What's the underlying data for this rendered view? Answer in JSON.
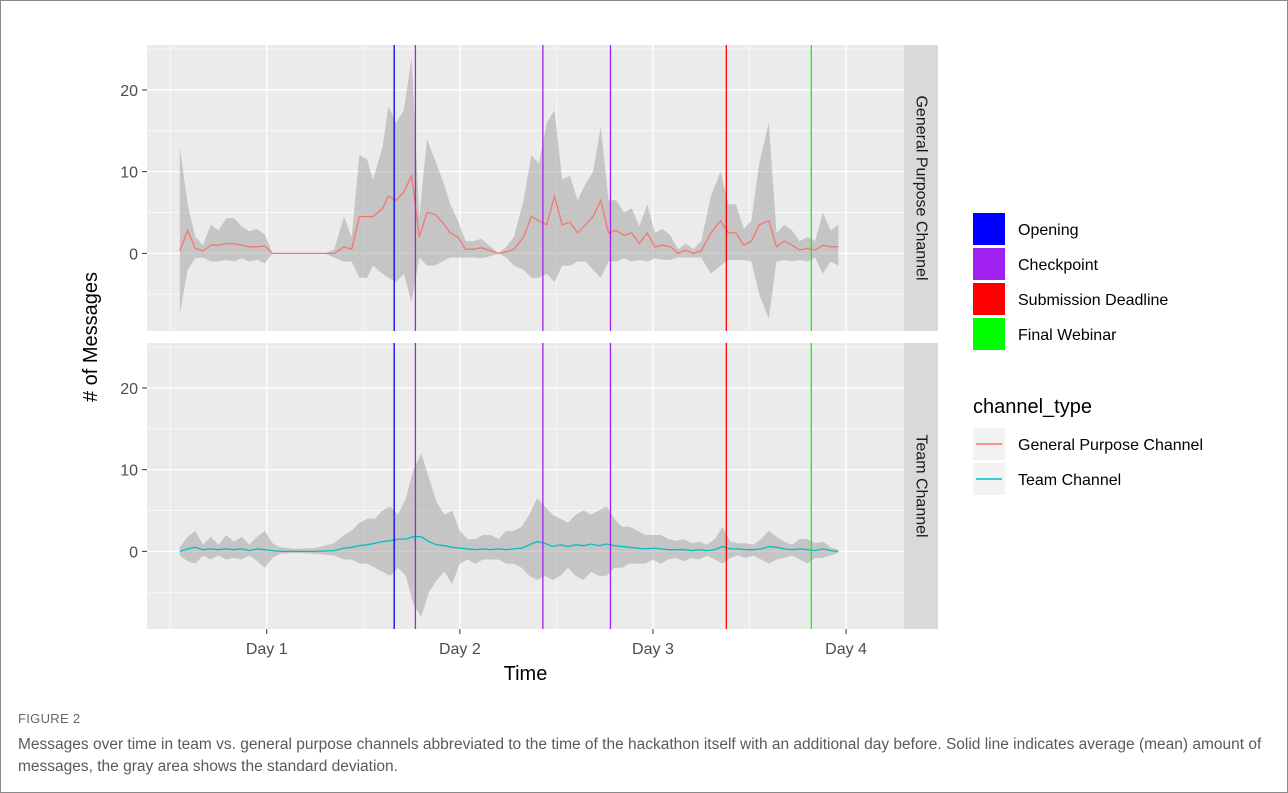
{
  "caption": {
    "figure_label": "FIGURE 2",
    "text": "Messages over time in team vs. general purpose channels abbreviated to the time of the hackathon itself with an additional day before. Solid line indicates average (mean) amount of messages, the gray area shows the standard deviation."
  },
  "colors": {
    "panel_bg": "#ebebeb",
    "grid_major": "#ffffff",
    "strip_bg": "#d9d9d9",
    "ribbon": "#a6a6a6",
    "general_line": "#f8766d",
    "team_line": "#00bfc4",
    "opening": "#0000ff",
    "checkpoint": "#a020f0",
    "submission": "#ff0000",
    "final_webinar": "#00ff00"
  },
  "chart_data": {
    "type": "line",
    "title": "",
    "xlabel": "Time",
    "ylabel": "# of Messages",
    "x_ticks": [
      {
        "label": "Day 1",
        "value": 1
      },
      {
        "label": "Day 2",
        "value": 2
      },
      {
        "label": "Day 3",
        "value": 3
      },
      {
        "label": "Day 4",
        "value": 4
      }
    ],
    "xlim": [
      0.38,
      4.3
    ],
    "y_ticks": [
      0,
      10,
      20
    ],
    "ylim": [
      -9.5,
      25.5
    ],
    "grid": true,
    "facets": [
      "General Purpose Channel",
      "Team Channel"
    ],
    "event_lines": [
      {
        "name": "Opening",
        "color": "#0000ff",
        "x": 1.66
      },
      {
        "name": "Checkpoint",
        "color": "#a020f0",
        "x": 1.77
      },
      {
        "name": "Checkpoint",
        "color": "#a020f0",
        "x": 2.43
      },
      {
        "name": "Checkpoint",
        "color": "#a020f0",
        "x": 2.78
      },
      {
        "name": "Submission Deadline",
        "color": "#ff0000",
        "x": 3.38
      },
      {
        "name": "Final Webinar",
        "color": "#00ff00",
        "x": 3.82
      }
    ],
    "event_legend": [
      {
        "label": "Opening",
        "color": "#0000ff"
      },
      {
        "label": "Checkpoint",
        "color": "#a020f0"
      },
      {
        "label": "Submission Deadline",
        "color": "#ff0000"
      },
      {
        "label": "Final Webinar",
        "color": "#00ff00"
      }
    ],
    "legend_title": "channel_type",
    "series": [
      {
        "name": "General Purpose Channel",
        "color": "#f8766d",
        "facet": "General Purpose Channel",
        "points": [
          [
            0.55,
            0.3,
            -7.5,
            13.0
          ],
          [
            0.59,
            2.8,
            -2.0,
            6.0
          ],
          [
            0.63,
            0.6,
            -0.6,
            2.0
          ],
          [
            0.67,
            0.3,
            -0.5,
            1.0
          ],
          [
            0.71,
            1.0,
            -1.0,
            3.5
          ],
          [
            0.75,
            1.0,
            -1.0,
            2.8
          ],
          [
            0.79,
            1.2,
            -0.8,
            4.3
          ],
          [
            0.83,
            1.2,
            -1.0,
            4.3
          ],
          [
            0.87,
            1.0,
            -0.6,
            3.3
          ],
          [
            0.91,
            0.8,
            -1.0,
            2.7
          ],
          [
            0.95,
            0.8,
            -0.8,
            3.0
          ],
          [
            0.99,
            0.9,
            -1.2,
            2.3
          ],
          [
            1.03,
            0.0,
            0.0,
            0.0
          ],
          [
            1.1,
            0.0,
            0.0,
            0.0
          ],
          [
            1.2,
            0.0,
            0.0,
            0.0
          ],
          [
            1.3,
            0.0,
            0.0,
            0.0
          ],
          [
            1.35,
            0.0,
            -0.5,
            0.5
          ],
          [
            1.4,
            0.8,
            -1.0,
            4.5
          ],
          [
            1.44,
            0.5,
            -1.0,
            2.0
          ],
          [
            1.48,
            4.5,
            -3.0,
            12.0
          ],
          [
            1.52,
            4.5,
            -3.0,
            11.5
          ],
          [
            1.55,
            4.5,
            -1.5,
            9.0
          ],
          [
            1.6,
            5.5,
            -2.5,
            13.0
          ],
          [
            1.63,
            7.0,
            -3.0,
            18.0
          ],
          [
            1.67,
            6.5,
            -3.5,
            16.0
          ],
          [
            1.71,
            7.5,
            -2.5,
            17.5
          ],
          [
            1.75,
            9.5,
            -6.0,
            24.0
          ],
          [
            1.79,
            2.0,
            -0.5,
            4.5
          ],
          [
            1.83,
            5.0,
            -1.5,
            14.0
          ],
          [
            1.87,
            4.8,
            -1.5,
            11.5
          ],
          [
            1.91,
            3.8,
            -1.0,
            9.0
          ],
          [
            1.95,
            2.5,
            -0.5,
            6.0
          ],
          [
            1.99,
            2.0,
            -0.5,
            4.0
          ],
          [
            2.03,
            0.5,
            -0.5,
            1.5
          ],
          [
            2.07,
            0.5,
            -0.5,
            1.5
          ],
          [
            2.11,
            0.7,
            -0.6,
            1.8
          ],
          [
            2.15,
            0.4,
            -0.4,
            1.0
          ],
          [
            2.2,
            0.0,
            0.0,
            0.0
          ],
          [
            2.24,
            0.2,
            -0.5,
            0.8
          ],
          [
            2.28,
            0.5,
            -1.5,
            2.0
          ],
          [
            2.33,
            2.0,
            -2.0,
            6.5
          ],
          [
            2.37,
            4.5,
            -3.0,
            12.0
          ],
          [
            2.41,
            4.0,
            -3.0,
            11.0
          ],
          [
            2.45,
            3.5,
            -2.5,
            16.0
          ],
          [
            2.49,
            7.0,
            -3.5,
            17.5
          ],
          [
            2.53,
            3.5,
            -1.5,
            9.0
          ],
          [
            2.57,
            3.8,
            -1.5,
            9.5
          ],
          [
            2.61,
            2.5,
            -1.0,
            6.5
          ],
          [
            2.65,
            3.5,
            -1.0,
            8.5
          ],
          [
            2.69,
            4.5,
            -2.0,
            10.0
          ],
          [
            2.73,
            6.5,
            -3.0,
            15.5
          ],
          [
            2.77,
            2.5,
            -1.0,
            6.5
          ],
          [
            2.81,
            2.8,
            -1.0,
            6.5
          ],
          [
            2.85,
            2.2,
            -0.6,
            5.0
          ],
          [
            2.89,
            2.5,
            -1.0,
            5.5
          ],
          [
            2.93,
            1.2,
            -0.8,
            3.3
          ],
          [
            2.97,
            2.5,
            -1.0,
            6.0
          ],
          [
            3.01,
            0.8,
            -0.6,
            2.5
          ],
          [
            3.05,
            1.0,
            -0.8,
            3.0
          ],
          [
            3.09,
            0.8,
            -0.8,
            2.2
          ],
          [
            3.13,
            0.0,
            -0.5,
            0.5
          ],
          [
            3.17,
            0.4,
            -0.5,
            1.2
          ],
          [
            3.21,
            0.0,
            -0.5,
            0.5
          ],
          [
            3.25,
            0.3,
            -0.5,
            1.5
          ],
          [
            3.3,
            2.5,
            -2.5,
            7.0
          ],
          [
            3.35,
            4.0,
            -1.5,
            10.0
          ],
          [
            3.39,
            2.5,
            -0.8,
            6.0
          ],
          [
            3.43,
            2.5,
            -0.8,
            6.0
          ],
          [
            3.47,
            1.0,
            -0.8,
            3.0
          ],
          [
            3.51,
            1.5,
            -1.0,
            4.0
          ],
          [
            3.55,
            3.5,
            -5.0,
            11.0
          ],
          [
            3.6,
            4.0,
            -8.0,
            16.0
          ],
          [
            3.64,
            0.8,
            -1.0,
            2.5
          ],
          [
            3.68,
            1.5,
            -0.8,
            3.5
          ],
          [
            3.72,
            1.0,
            -1.0,
            2.8
          ],
          [
            3.76,
            0.4,
            -0.8,
            1.5
          ],
          [
            3.8,
            0.6,
            -1.0,
            2.0
          ],
          [
            3.84,
            0.4,
            -0.5,
            1.5
          ],
          [
            3.88,
            1.0,
            -2.5,
            5.0
          ],
          [
            3.92,
            0.8,
            -1.0,
            2.8
          ],
          [
            3.96,
            0.8,
            -1.5,
            3.5
          ]
        ]
      },
      {
        "name": "Team Channel",
        "color": "#00bfc4",
        "facet": "Team Channel",
        "points": [
          [
            0.55,
            0.0,
            -0.5,
            0.5
          ],
          [
            0.59,
            0.3,
            -1.2,
            1.8
          ],
          [
            0.63,
            0.5,
            -1.5,
            2.5
          ],
          [
            0.67,
            0.2,
            -0.5,
            0.8
          ],
          [
            0.71,
            0.3,
            -1.0,
            1.8
          ],
          [
            0.75,
            0.2,
            -0.5,
            0.8
          ],
          [
            0.79,
            0.3,
            -1.0,
            2.0
          ],
          [
            0.83,
            0.2,
            -0.8,
            1.2
          ],
          [
            0.87,
            0.3,
            -1.0,
            1.8
          ],
          [
            0.91,
            0.1,
            -0.5,
            0.8
          ],
          [
            0.95,
            0.3,
            -1.2,
            1.8
          ],
          [
            0.99,
            0.2,
            -2.0,
            2.5
          ],
          [
            1.03,
            0.1,
            -0.8,
            1.0
          ],
          [
            1.07,
            0.0,
            -0.3,
            0.5
          ],
          [
            1.15,
            0.0,
            -0.2,
            0.3
          ],
          [
            1.25,
            0.0,
            -0.3,
            0.4
          ],
          [
            1.35,
            0.1,
            -0.5,
            1.0
          ],
          [
            1.4,
            0.4,
            -1.0,
            2.0
          ],
          [
            1.44,
            0.5,
            -1.0,
            2.5
          ],
          [
            1.48,
            0.7,
            -1.5,
            3.5
          ],
          [
            1.52,
            0.8,
            -1.5,
            4.0
          ],
          [
            1.56,
            1.0,
            -2.0,
            4.0
          ],
          [
            1.6,
            1.2,
            -2.5,
            5.0
          ],
          [
            1.64,
            1.3,
            -3.0,
            5.5
          ],
          [
            1.68,
            1.5,
            -2.0,
            4.5
          ],
          [
            1.72,
            1.5,
            -3.0,
            6.5
          ],
          [
            1.76,
            1.8,
            -6.5,
            10.0
          ],
          [
            1.8,
            1.8,
            -8.0,
            12.0
          ],
          [
            1.84,
            1.2,
            -5.0,
            9.0
          ],
          [
            1.88,
            0.8,
            -3.5,
            6.0
          ],
          [
            1.92,
            0.7,
            -2.5,
            4.5
          ],
          [
            1.96,
            0.5,
            -4.0,
            5.0
          ],
          [
            2.0,
            0.4,
            -1.5,
            2.5
          ],
          [
            2.04,
            0.3,
            -1.0,
            1.5
          ],
          [
            2.08,
            0.2,
            -1.5,
            1.5
          ],
          [
            2.12,
            0.3,
            -1.0,
            2.0
          ],
          [
            2.16,
            0.2,
            -1.0,
            2.0
          ],
          [
            2.2,
            0.3,
            -1.0,
            1.5
          ],
          [
            2.24,
            0.2,
            -1.5,
            2.5
          ],
          [
            2.28,
            0.3,
            -1.5,
            2.5
          ],
          [
            2.32,
            0.4,
            -2.0,
            3.0
          ],
          [
            2.36,
            0.8,
            -3.0,
            4.5
          ],
          [
            2.4,
            1.2,
            -3.5,
            6.5
          ],
          [
            2.44,
            1.0,
            -3.0,
            5.5
          ],
          [
            2.48,
            0.6,
            -3.5,
            4.5
          ],
          [
            2.52,
            0.8,
            -3.0,
            4.0
          ],
          [
            2.56,
            0.6,
            -2.0,
            3.5
          ],
          [
            2.6,
            0.8,
            -3.0,
            4.5
          ],
          [
            2.64,
            0.7,
            -3.5,
            5.0
          ],
          [
            2.68,
            0.9,
            -2.5,
            4.5
          ],
          [
            2.72,
            0.7,
            -3.0,
            5.0
          ],
          [
            2.76,
            0.9,
            -3.0,
            5.5
          ],
          [
            2.8,
            0.7,
            -2.0,
            4.0
          ],
          [
            2.84,
            0.6,
            -2.0,
            3.0
          ],
          [
            2.88,
            0.5,
            -1.5,
            3.0
          ],
          [
            2.92,
            0.4,
            -1.5,
            2.5
          ],
          [
            2.96,
            0.3,
            -1.5,
            2.0
          ],
          [
            3.0,
            0.4,
            -1.0,
            2.0
          ],
          [
            3.04,
            0.3,
            -1.5,
            2.0
          ],
          [
            3.08,
            0.2,
            -1.0,
            1.5
          ],
          [
            3.12,
            0.2,
            -0.8,
            1.3
          ],
          [
            3.16,
            0.2,
            -1.2,
            1.5
          ],
          [
            3.2,
            0.1,
            -0.8,
            1.0
          ],
          [
            3.24,
            0.2,
            -1.0,
            1.2
          ],
          [
            3.28,
            0.1,
            -0.5,
            0.8
          ],
          [
            3.32,
            0.2,
            -1.0,
            1.5
          ],
          [
            3.36,
            0.6,
            -1.5,
            3.0
          ],
          [
            3.4,
            0.3,
            -0.8,
            1.2
          ],
          [
            3.44,
            0.3,
            -0.5,
            1.0
          ],
          [
            3.48,
            0.2,
            -0.8,
            1.0
          ],
          [
            3.52,
            0.2,
            -0.5,
            0.8
          ],
          [
            3.56,
            0.3,
            -1.0,
            1.5
          ],
          [
            3.6,
            0.6,
            -1.5,
            2.5
          ],
          [
            3.64,
            0.5,
            -1.0,
            1.8
          ],
          [
            3.68,
            0.3,
            -0.8,
            1.2
          ],
          [
            3.72,
            0.2,
            -0.5,
            0.8
          ],
          [
            3.76,
            0.3,
            -1.0,
            1.5
          ],
          [
            3.8,
            0.2,
            -1.5,
            1.5
          ],
          [
            3.84,
            0.1,
            -0.8,
            1.0
          ],
          [
            3.88,
            0.3,
            -0.8,
            1.2
          ],
          [
            3.92,
            0.1,
            -0.5,
            0.5
          ],
          [
            3.96,
            0.0,
            -0.2,
            0.2
          ]
        ]
      }
    ]
  }
}
